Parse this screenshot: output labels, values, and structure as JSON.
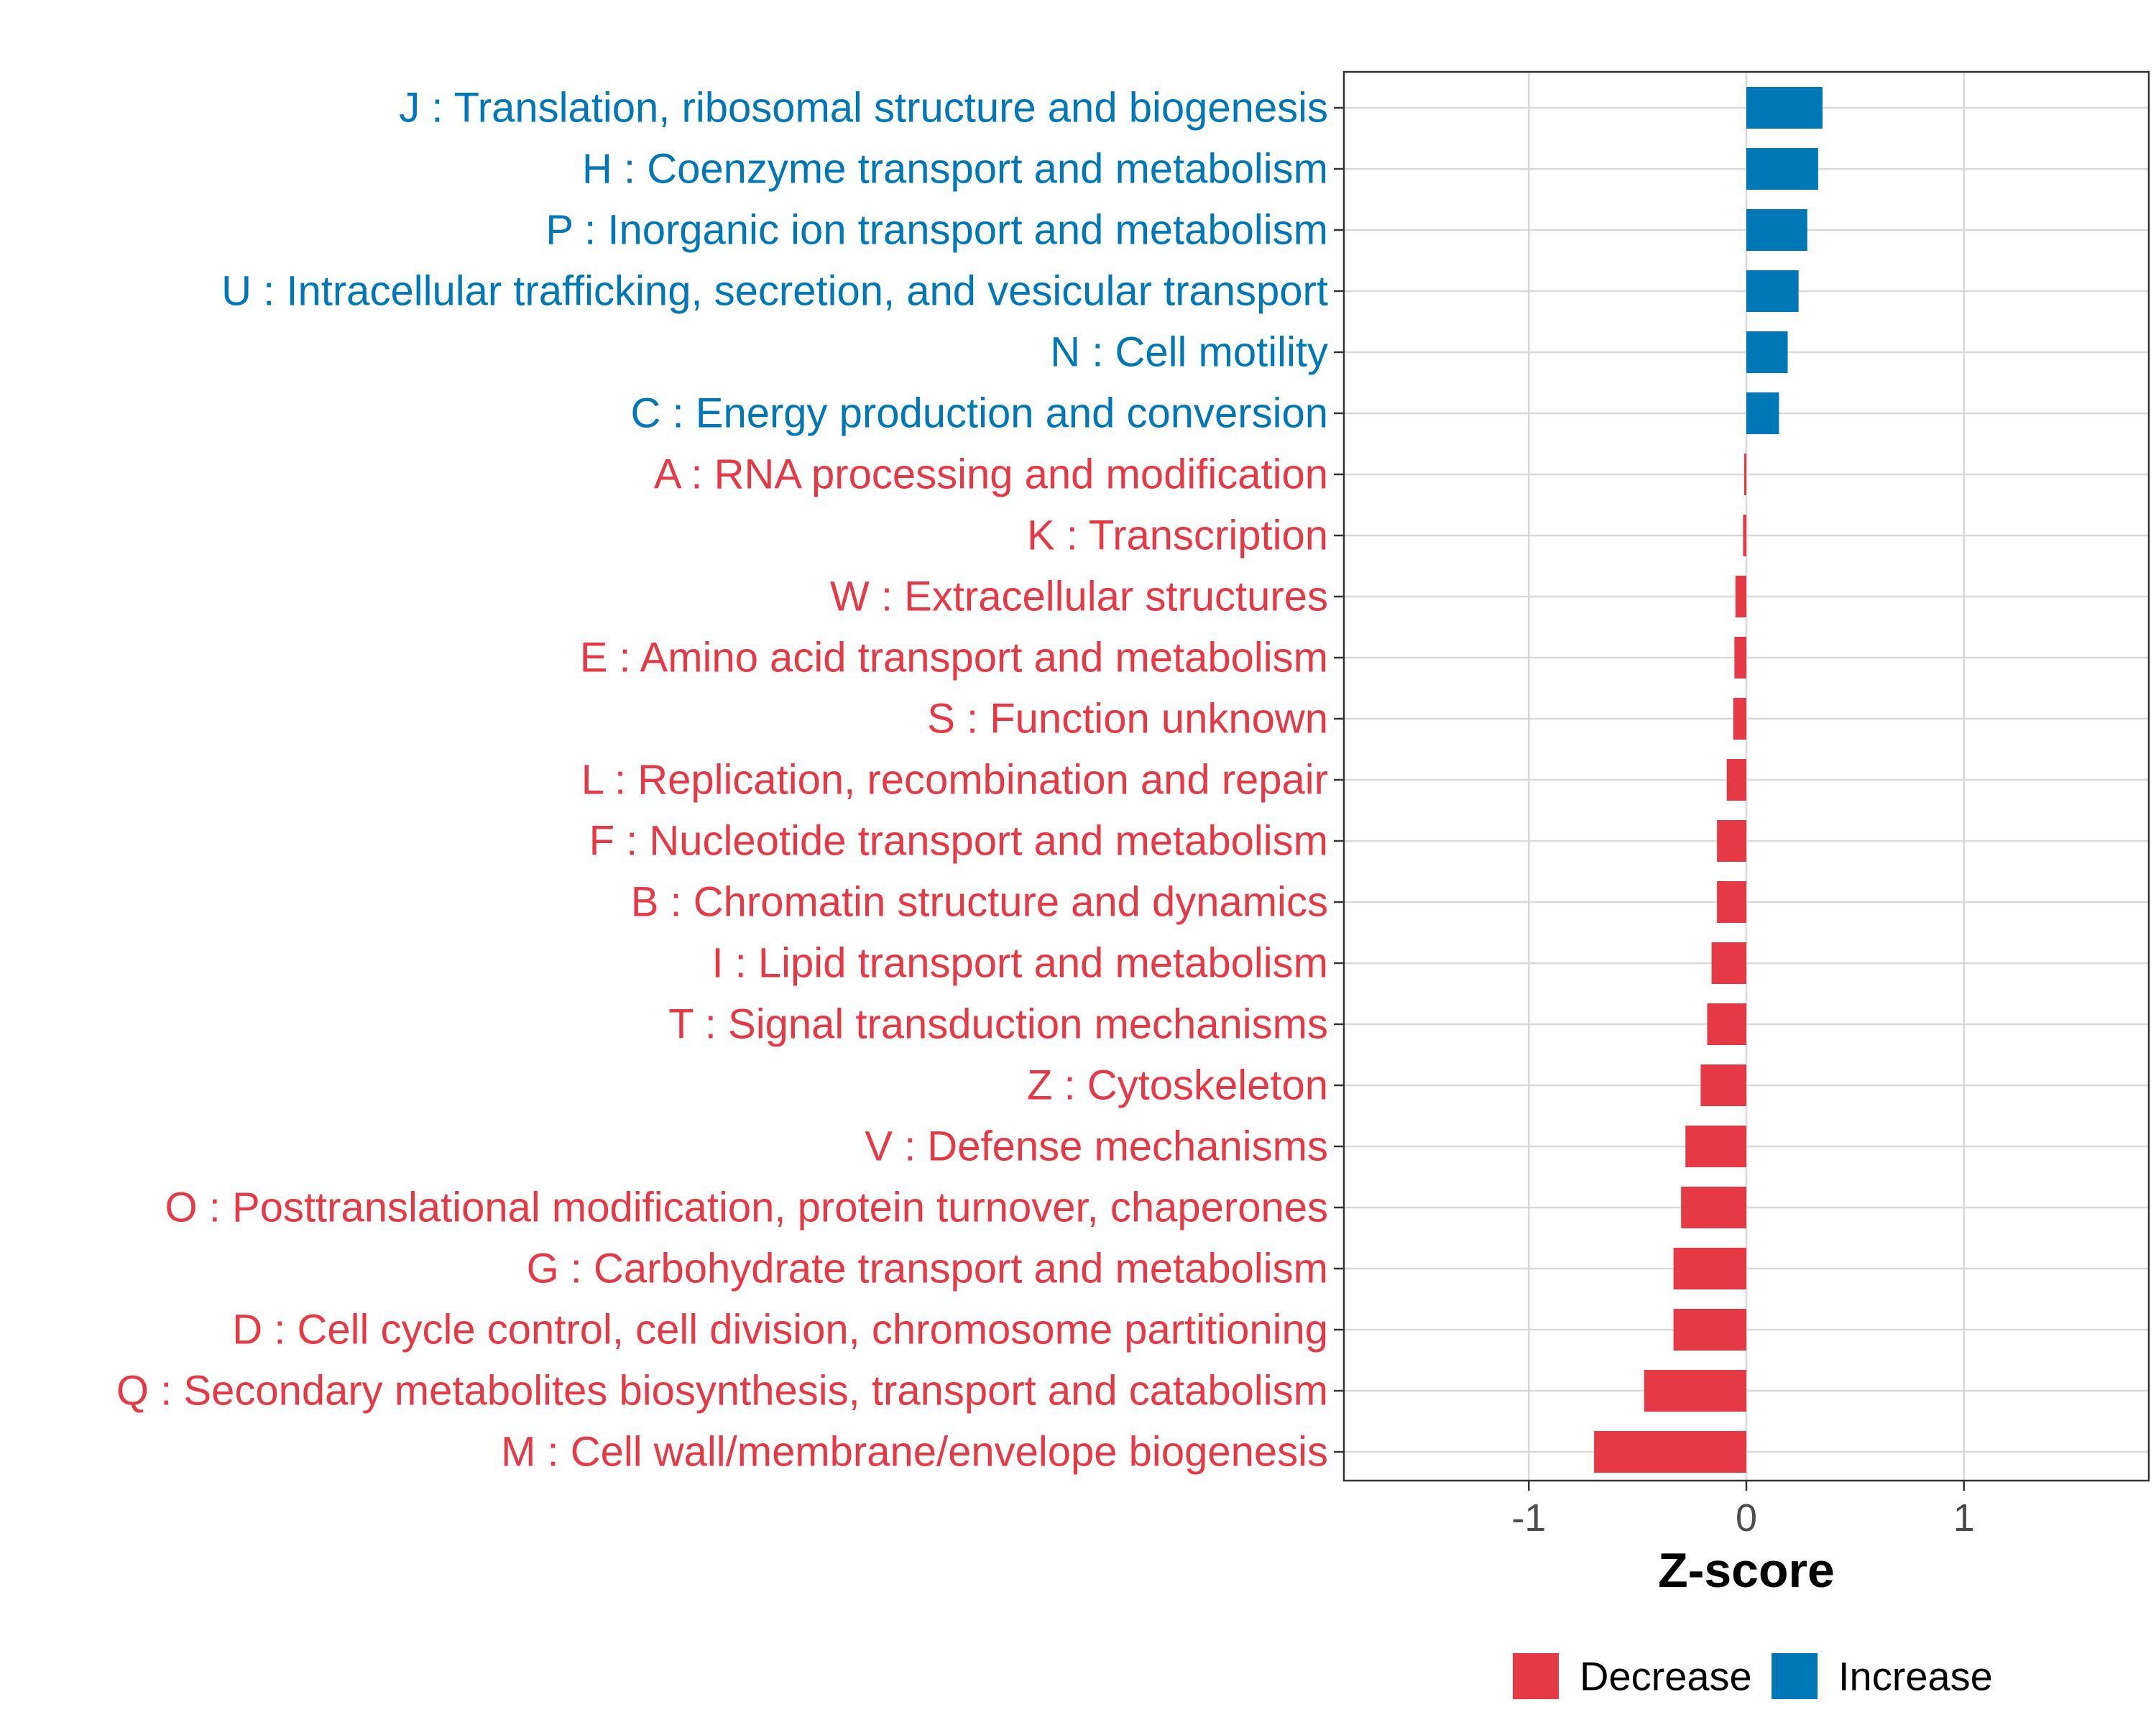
{
  "chart_data": {
    "type": "bar",
    "orientation": "horizontal",
    "xlabel": "Z-score",
    "xlim": [
      -1.85,
      1.85
    ],
    "xticks": [
      -1,
      0,
      1
    ],
    "xtick_labels": [
      "-1",
      "0",
      "1"
    ],
    "grid": true,
    "legend_position": "bottom",
    "colors": {
      "Decrease": "#e63946",
      "Increase": "#0077b6"
    },
    "legend": [
      {
        "name": "Decrease",
        "color": "#e63946"
      },
      {
        "name": "Increase",
        "color": "#0077b6"
      }
    ],
    "categories": [
      "J : Translation, ribosomal structure and biogenesis",
      "H : Coenzyme transport and metabolism",
      "P : Inorganic ion transport and metabolism",
      "U : Intracellular trafficking, secretion, and vesicular transport",
      "N : Cell motility",
      "C : Energy production and conversion",
      "A : RNA processing and modification",
      "K : Transcription",
      "W : Extracellular structures",
      "E : Amino acid transport and metabolism",
      "S : Function unknown",
      "L : Replication, recombination and repair",
      "F : Nucleotide transport and metabolism",
      "B : Chromatin structure and dynamics",
      "I : Lipid transport and metabolism",
      "T : Signal transduction mechanisms",
      "Z : Cytoskeleton",
      "V : Defense mechanisms",
      "O : Posttranslational modification, protein turnover, chaperones",
      "G : Carbohydrate transport and metabolism",
      "D : Cell cycle control, cell division, chromosome partitioning",
      "Q : Secondary metabolites biosynthesis, transport and catabolism",
      "M : Cell wall/membrane/envelope biogenesis"
    ],
    "values": [
      0.35,
      0.33,
      0.28,
      0.24,
      0.19,
      0.15,
      -0.01,
      -0.015,
      -0.05,
      -0.055,
      -0.06,
      -0.09,
      -0.135,
      -0.135,
      -0.16,
      -0.18,
      -0.21,
      -0.28,
      -0.3,
      -0.335,
      -0.335,
      -0.47,
      -0.7
    ],
    "groups": [
      "Increase",
      "Increase",
      "Increase",
      "Increase",
      "Increase",
      "Increase",
      "Decrease",
      "Decrease",
      "Decrease",
      "Decrease",
      "Decrease",
      "Decrease",
      "Decrease",
      "Decrease",
      "Decrease",
      "Decrease",
      "Decrease",
      "Decrease",
      "Decrease",
      "Decrease",
      "Decrease",
      "Decrease",
      "Decrease"
    ]
  }
}
